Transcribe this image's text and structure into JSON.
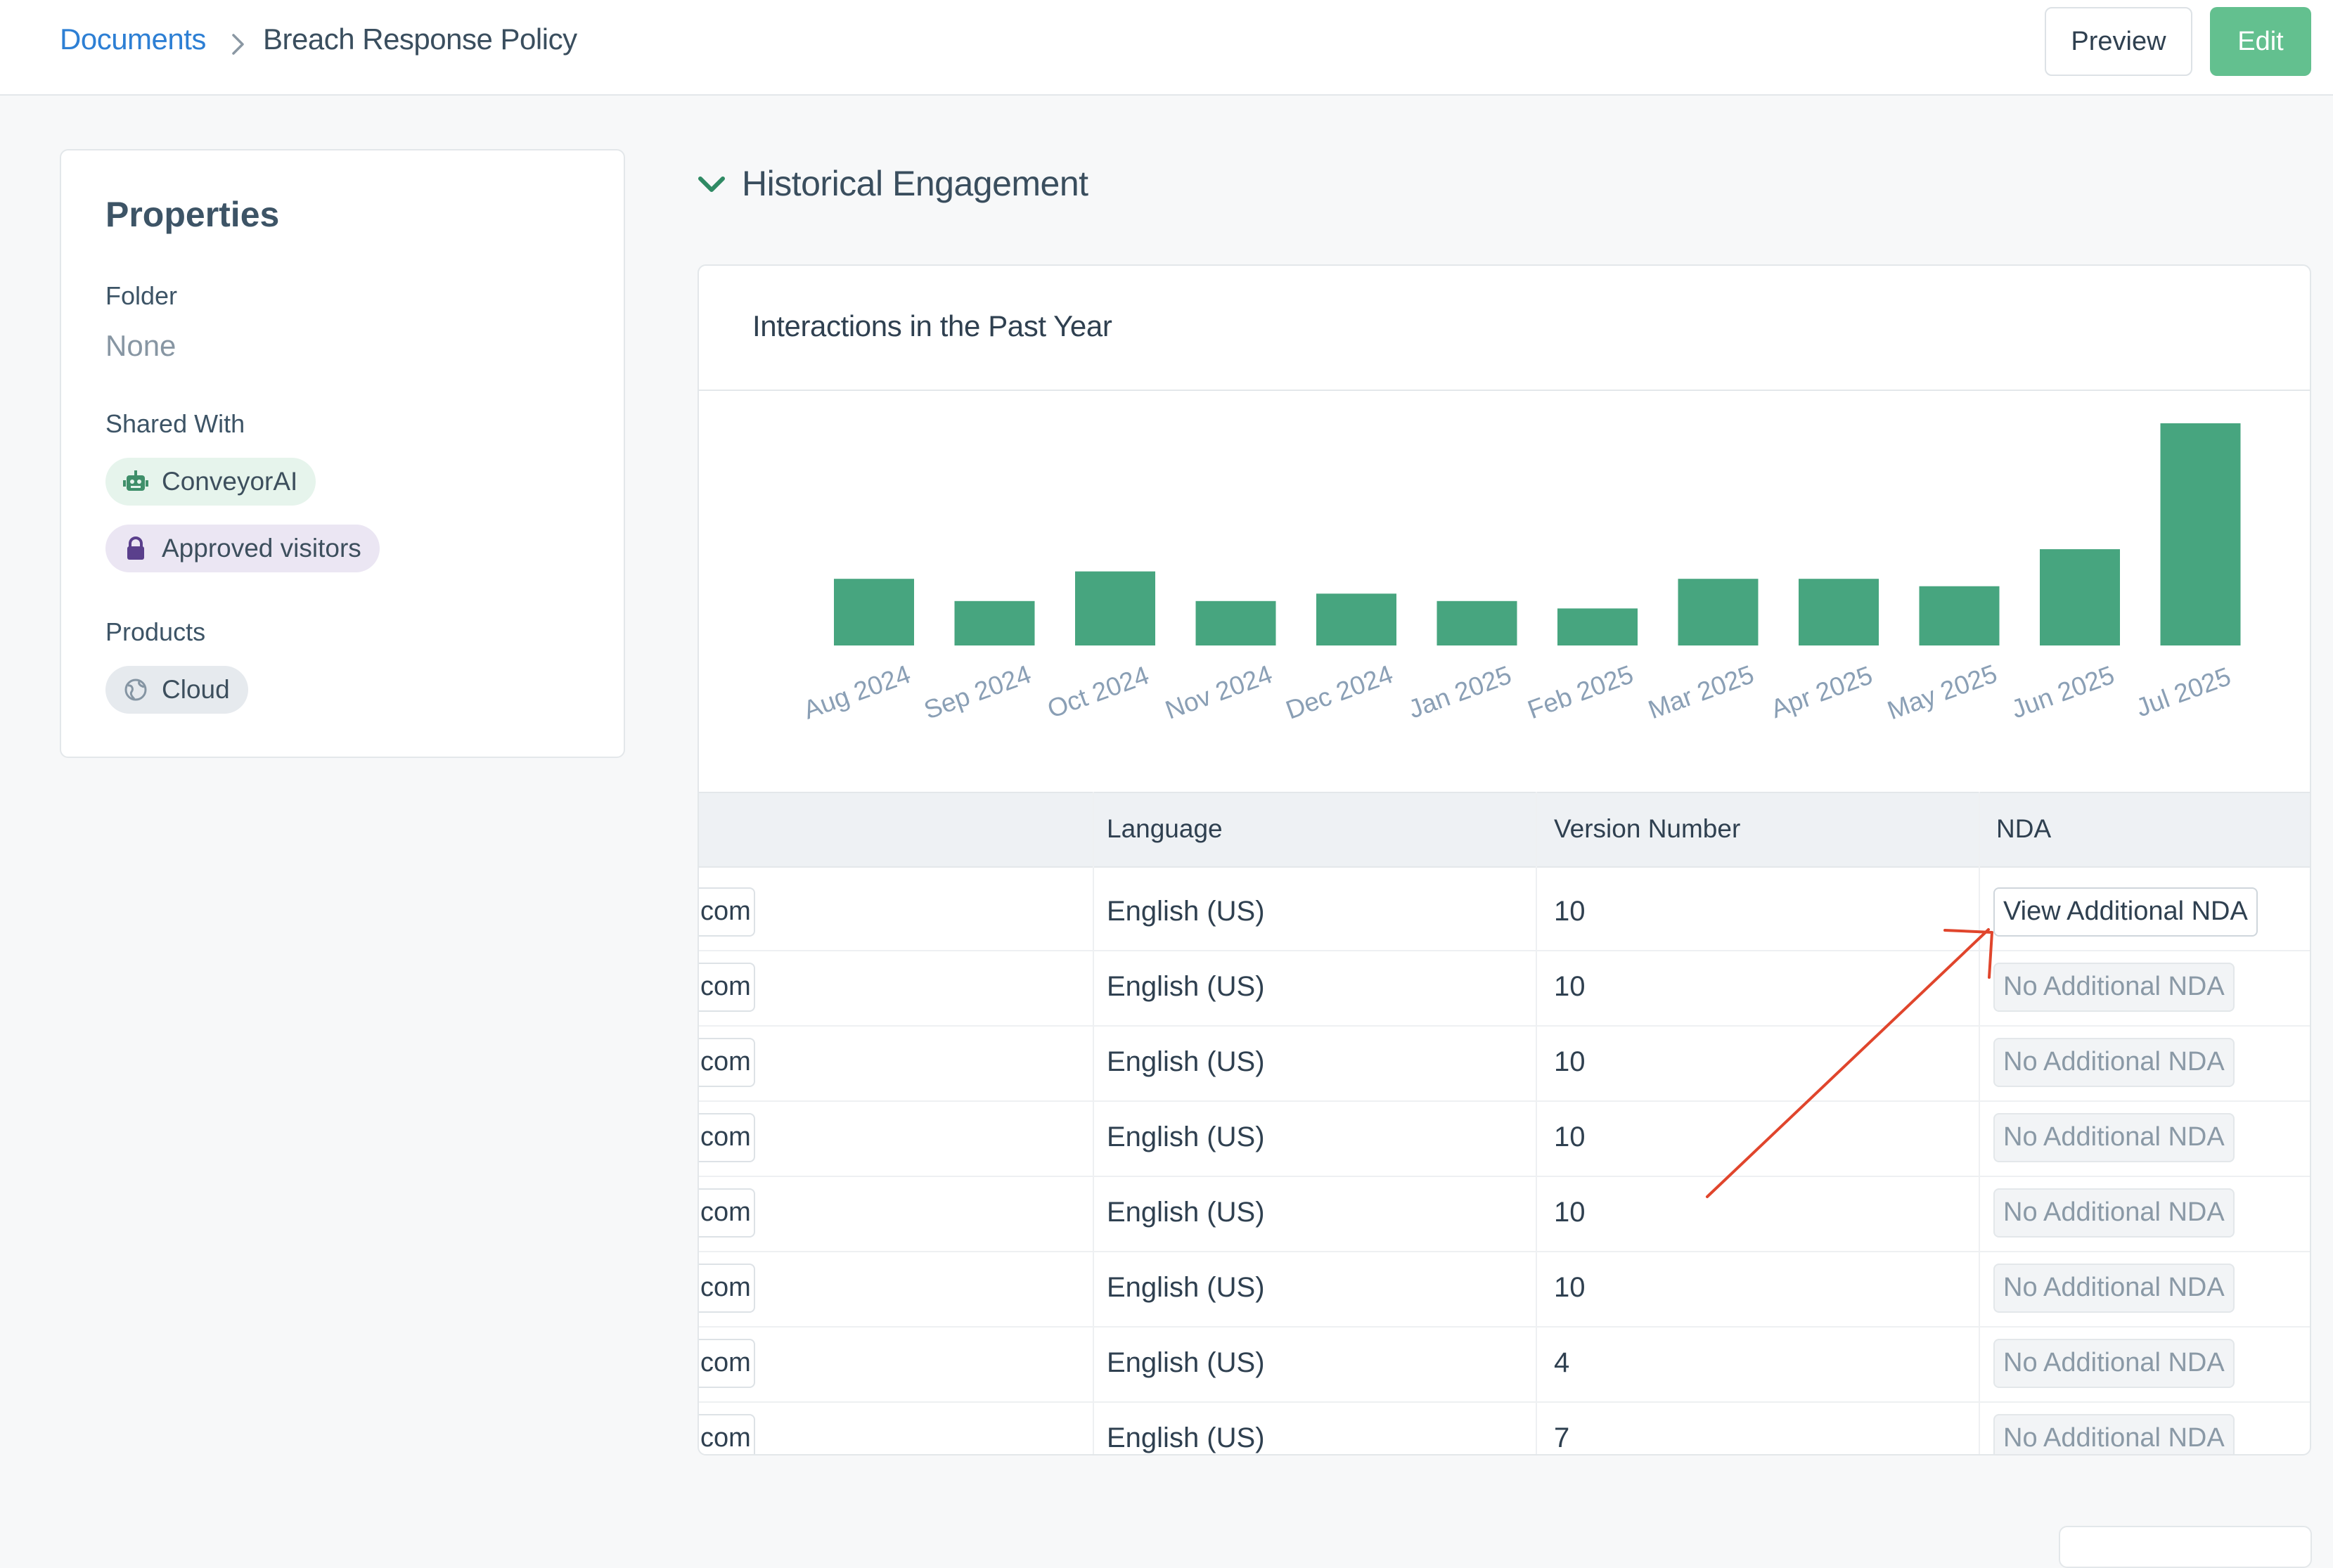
{
  "breadcrumb": {
    "root": "Documents",
    "current": "Breach Response Policy"
  },
  "actions": {
    "preview": "Preview",
    "edit": "Edit"
  },
  "properties": {
    "title": "Properties",
    "folder_label": "Folder",
    "folder_value": "None",
    "shared_label": "Shared With",
    "shared": [
      {
        "label": "ConveyorAI",
        "icon": "robot-icon"
      },
      {
        "label": "Approved visitors",
        "icon": "lock-icon"
      }
    ],
    "products_label": "Products",
    "products": [
      {
        "label": "Cloud",
        "icon": "globe-icon"
      }
    ]
  },
  "section": {
    "title": "Historical Engagement"
  },
  "chart_data": {
    "type": "bar",
    "title": "Interactions in the Past Year",
    "categories": [
      "Aug 2024",
      "Sep 2024",
      "Oct 2024",
      "Nov 2024",
      "Dec 2024",
      "Jan 2025",
      "Feb 2025",
      "Mar 2025",
      "Apr 2025",
      "May 2025",
      "Jun 2025",
      "Jul 2025"
    ],
    "values": [
      9,
      6,
      10,
      6,
      7,
      6,
      5,
      9,
      9,
      8,
      13,
      30
    ],
    "bar_color": "#47a57f",
    "tick_color": "#8a9fb5",
    "grid": false
  },
  "table": {
    "columns": [
      "",
      "Language",
      "Version Number",
      "NDA"
    ],
    "rows": [
      {
        "email": "com",
        "language": "English (US)",
        "version": "10",
        "nda": "View Additional NDA",
        "nda_type": "view"
      },
      {
        "email": "com",
        "language": "English (US)",
        "version": "10",
        "nda": "No Additional NDA",
        "nda_type": "none"
      },
      {
        "email": "com",
        "language": "English (US)",
        "version": "10",
        "nda": "No Additional NDA",
        "nda_type": "none"
      },
      {
        "email": "com",
        "language": "English (US)",
        "version": "10",
        "nda": "No Additional NDA",
        "nda_type": "none"
      },
      {
        "email": "com",
        "language": "English (US)",
        "version": "10",
        "nda": "No Additional NDA",
        "nda_type": "none"
      },
      {
        "email": "com",
        "language": "English (US)",
        "version": "10",
        "nda": "No Additional NDA",
        "nda_type": "none"
      },
      {
        "email": "com",
        "language": "English (US)",
        "version": "4",
        "nda": "No Additional NDA",
        "nda_type": "none"
      },
      {
        "email": "com",
        "language": "English (US)",
        "version": "7",
        "nda": "No Additional NDA",
        "nda_type": "none"
      }
    ]
  },
  "colors": {
    "accent_green": "#63c08f",
    "link_blue": "#2d7fd4",
    "annotation_red": "#e0452c"
  }
}
